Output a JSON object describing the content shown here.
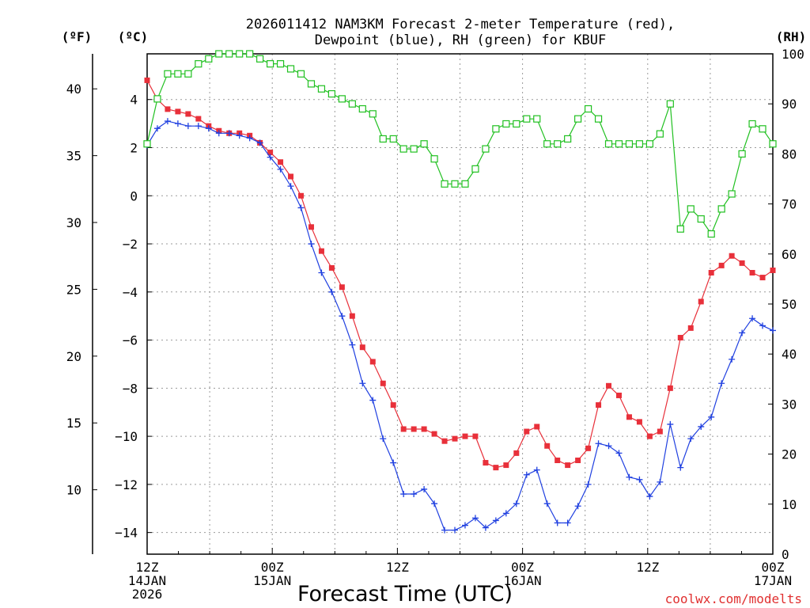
{
  "chart_data": {
    "type": "line",
    "title_line1": "2026011412 NAM3KM Forecast 2-meter Temperature (red),",
    "title_line2": "Dewpoint (blue), RH (green) for KBUF",
    "xlabel": "Forecast Time (UTC)",
    "credit": "coolwx.com/modelts",
    "units": {
      "fahrenheit": "(ºF)",
      "celsius": "(ºC)",
      "rh": "(RH)"
    },
    "x_range_hours": [
      0,
      60
    ],
    "x_ticks": [
      {
        "hour": 0,
        "line1": "12Z",
        "line2": "14JAN",
        "line3": "2026"
      },
      {
        "hour": 12,
        "line1": "00Z",
        "line2": "15JAN",
        "line3": ""
      },
      {
        "hour": 24,
        "line1": "12Z",
        "line2": "",
        "line3": ""
      },
      {
        "hour": 36,
        "line1": "00Z",
        "line2": "16JAN",
        "line3": ""
      },
      {
        "hour": 48,
        "line1": "12Z",
        "line2": "",
        "line3": ""
      },
      {
        "hour": 60,
        "line1": "00Z",
        "line2": "17JAN",
        "line3": ""
      }
    ],
    "celsius_axis": {
      "range": [
        -14.9,
        5.9
      ],
      "ticks": [
        "4",
        "2",
        "0",
        "−2",
        "−4",
        "−6",
        "−8",
        "−10",
        "−12",
        "−14"
      ]
    },
    "fahrenheit_axis": {
      "ticks": [
        "40",
        "35",
        "30",
        "25",
        "20",
        "15",
        "10"
      ]
    },
    "rh_axis": {
      "range": [
        0,
        100
      ],
      "ticks": [
        "100",
        "90",
        "80",
        "70",
        "60",
        "50",
        "40",
        "30",
        "20",
        "10",
        "0"
      ]
    },
    "series": [
      {
        "name": "Temperature",
        "unit": "C",
        "color": "#e8303a",
        "marker": "filled-square",
        "values": [
          4.8,
          4.0,
          3.6,
          3.5,
          3.4,
          3.2,
          2.9,
          2.7,
          2.6,
          2.6,
          2.5,
          2.2,
          1.8,
          1.4,
          0.8,
          0.0,
          -1.3,
          -2.3,
          -3.0,
          -3.8,
          -5.0,
          -6.3,
          -6.9,
          -7.8,
          -8.7,
          -9.7,
          -9.7,
          -9.7,
          -9.9,
          -10.2,
          -10.1,
          -10.0,
          -10.0,
          -11.1,
          -11.3,
          -11.2,
          -10.7,
          -9.8,
          -9.6,
          -10.4,
          -11.0,
          -11.2,
          -11.0,
          -10.5,
          -8.7,
          -7.9,
          -8.3,
          -9.2,
          -9.4,
          -10.0,
          -9.8,
          -8.0,
          -5.9,
          -5.5,
          -4.4,
          -3.2,
          -2.9,
          -2.5,
          -2.8,
          -3.2,
          -3.4,
          -3.1
        ]
      },
      {
        "name": "Dewpoint",
        "unit": "C",
        "color": "#2040e0",
        "marker": "plus",
        "values": [
          2.1,
          2.8,
          3.1,
          3.0,
          2.9,
          2.9,
          2.8,
          2.6,
          2.6,
          2.5,
          2.4,
          2.2,
          1.6,
          1.1,
          0.4,
          -0.5,
          -2.0,
          -3.2,
          -4.0,
          -5.0,
          -6.2,
          -7.8,
          -8.5,
          -10.1,
          -11.1,
          -12.4,
          -12.4,
          -12.2,
          -12.8,
          -13.9,
          -13.9,
          -13.7,
          -13.4,
          -13.8,
          -13.5,
          -13.2,
          -12.8,
          -11.6,
          -11.4,
          -12.8,
          -13.6,
          -13.6,
          -12.9,
          -12.0,
          -10.3,
          -10.4,
          -10.7,
          -11.7,
          -11.8,
          -12.5,
          -11.9,
          -9.5,
          -11.3,
          -10.1,
          -9.6,
          -9.2,
          -7.8,
          -6.8,
          -5.7,
          -5.1,
          -5.4,
          -5.6
        ]
      },
      {
        "name": "RH",
        "unit": "%",
        "color": "#20c020",
        "marker": "open-square",
        "values": [
          82,
          91,
          96,
          96,
          96,
          98,
          99,
          100,
          100,
          100,
          100,
          99,
          98,
          98,
          97,
          96,
          94,
          93,
          92,
          91,
          90,
          89,
          88,
          83,
          83,
          81,
          81,
          82,
          79,
          74,
          74,
          74,
          77,
          81,
          85,
          86,
          86,
          87,
          87,
          82,
          82,
          83,
          87,
          89,
          87,
          82,
          82,
          82,
          82,
          82,
          84,
          90,
          65,
          69,
          67,
          64,
          69,
          72,
          80,
          86,
          85,
          82
        ]
      }
    ]
  }
}
